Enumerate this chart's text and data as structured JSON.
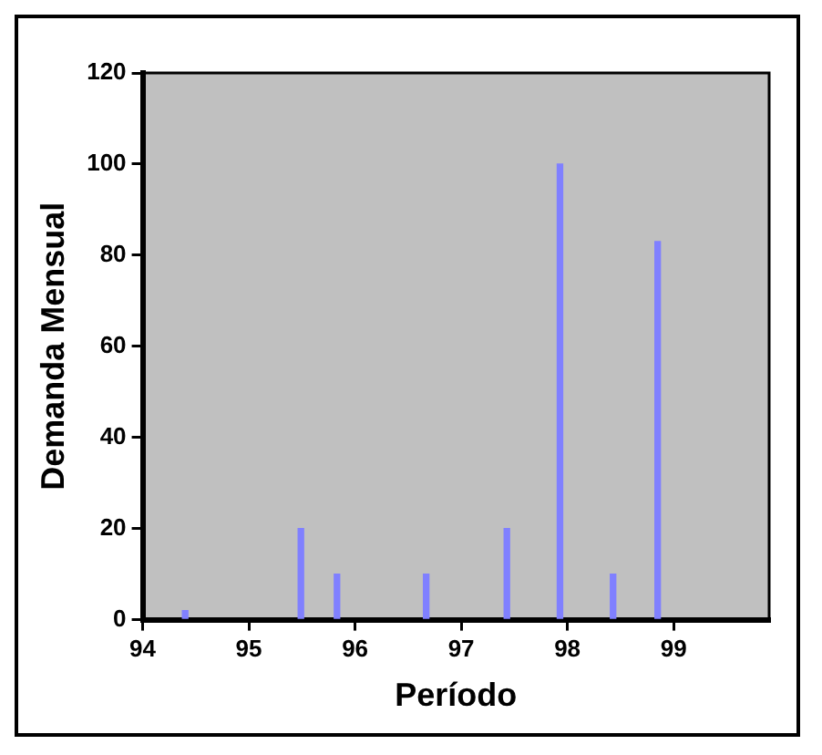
{
  "chart_data": {
    "type": "bar",
    "xlabel": "Período",
    "ylabel": "Demanda Mensual",
    "x": [
      94.4,
      95.49,
      95.83,
      96.67,
      97.43,
      97.93,
      98.43,
      98.85
    ],
    "values": [
      2,
      20,
      10,
      10,
      20,
      100,
      10,
      83
    ],
    "color": "#8080ff",
    "xlim": [
      94,
      99.9
    ],
    "xticks": [
      94,
      95,
      96,
      97,
      98,
      99
    ],
    "ylim": [
      0,
      120
    ],
    "yticks": [
      0,
      20,
      40,
      60,
      80,
      100,
      120
    ],
    "grid": false,
    "legend": false
  }
}
